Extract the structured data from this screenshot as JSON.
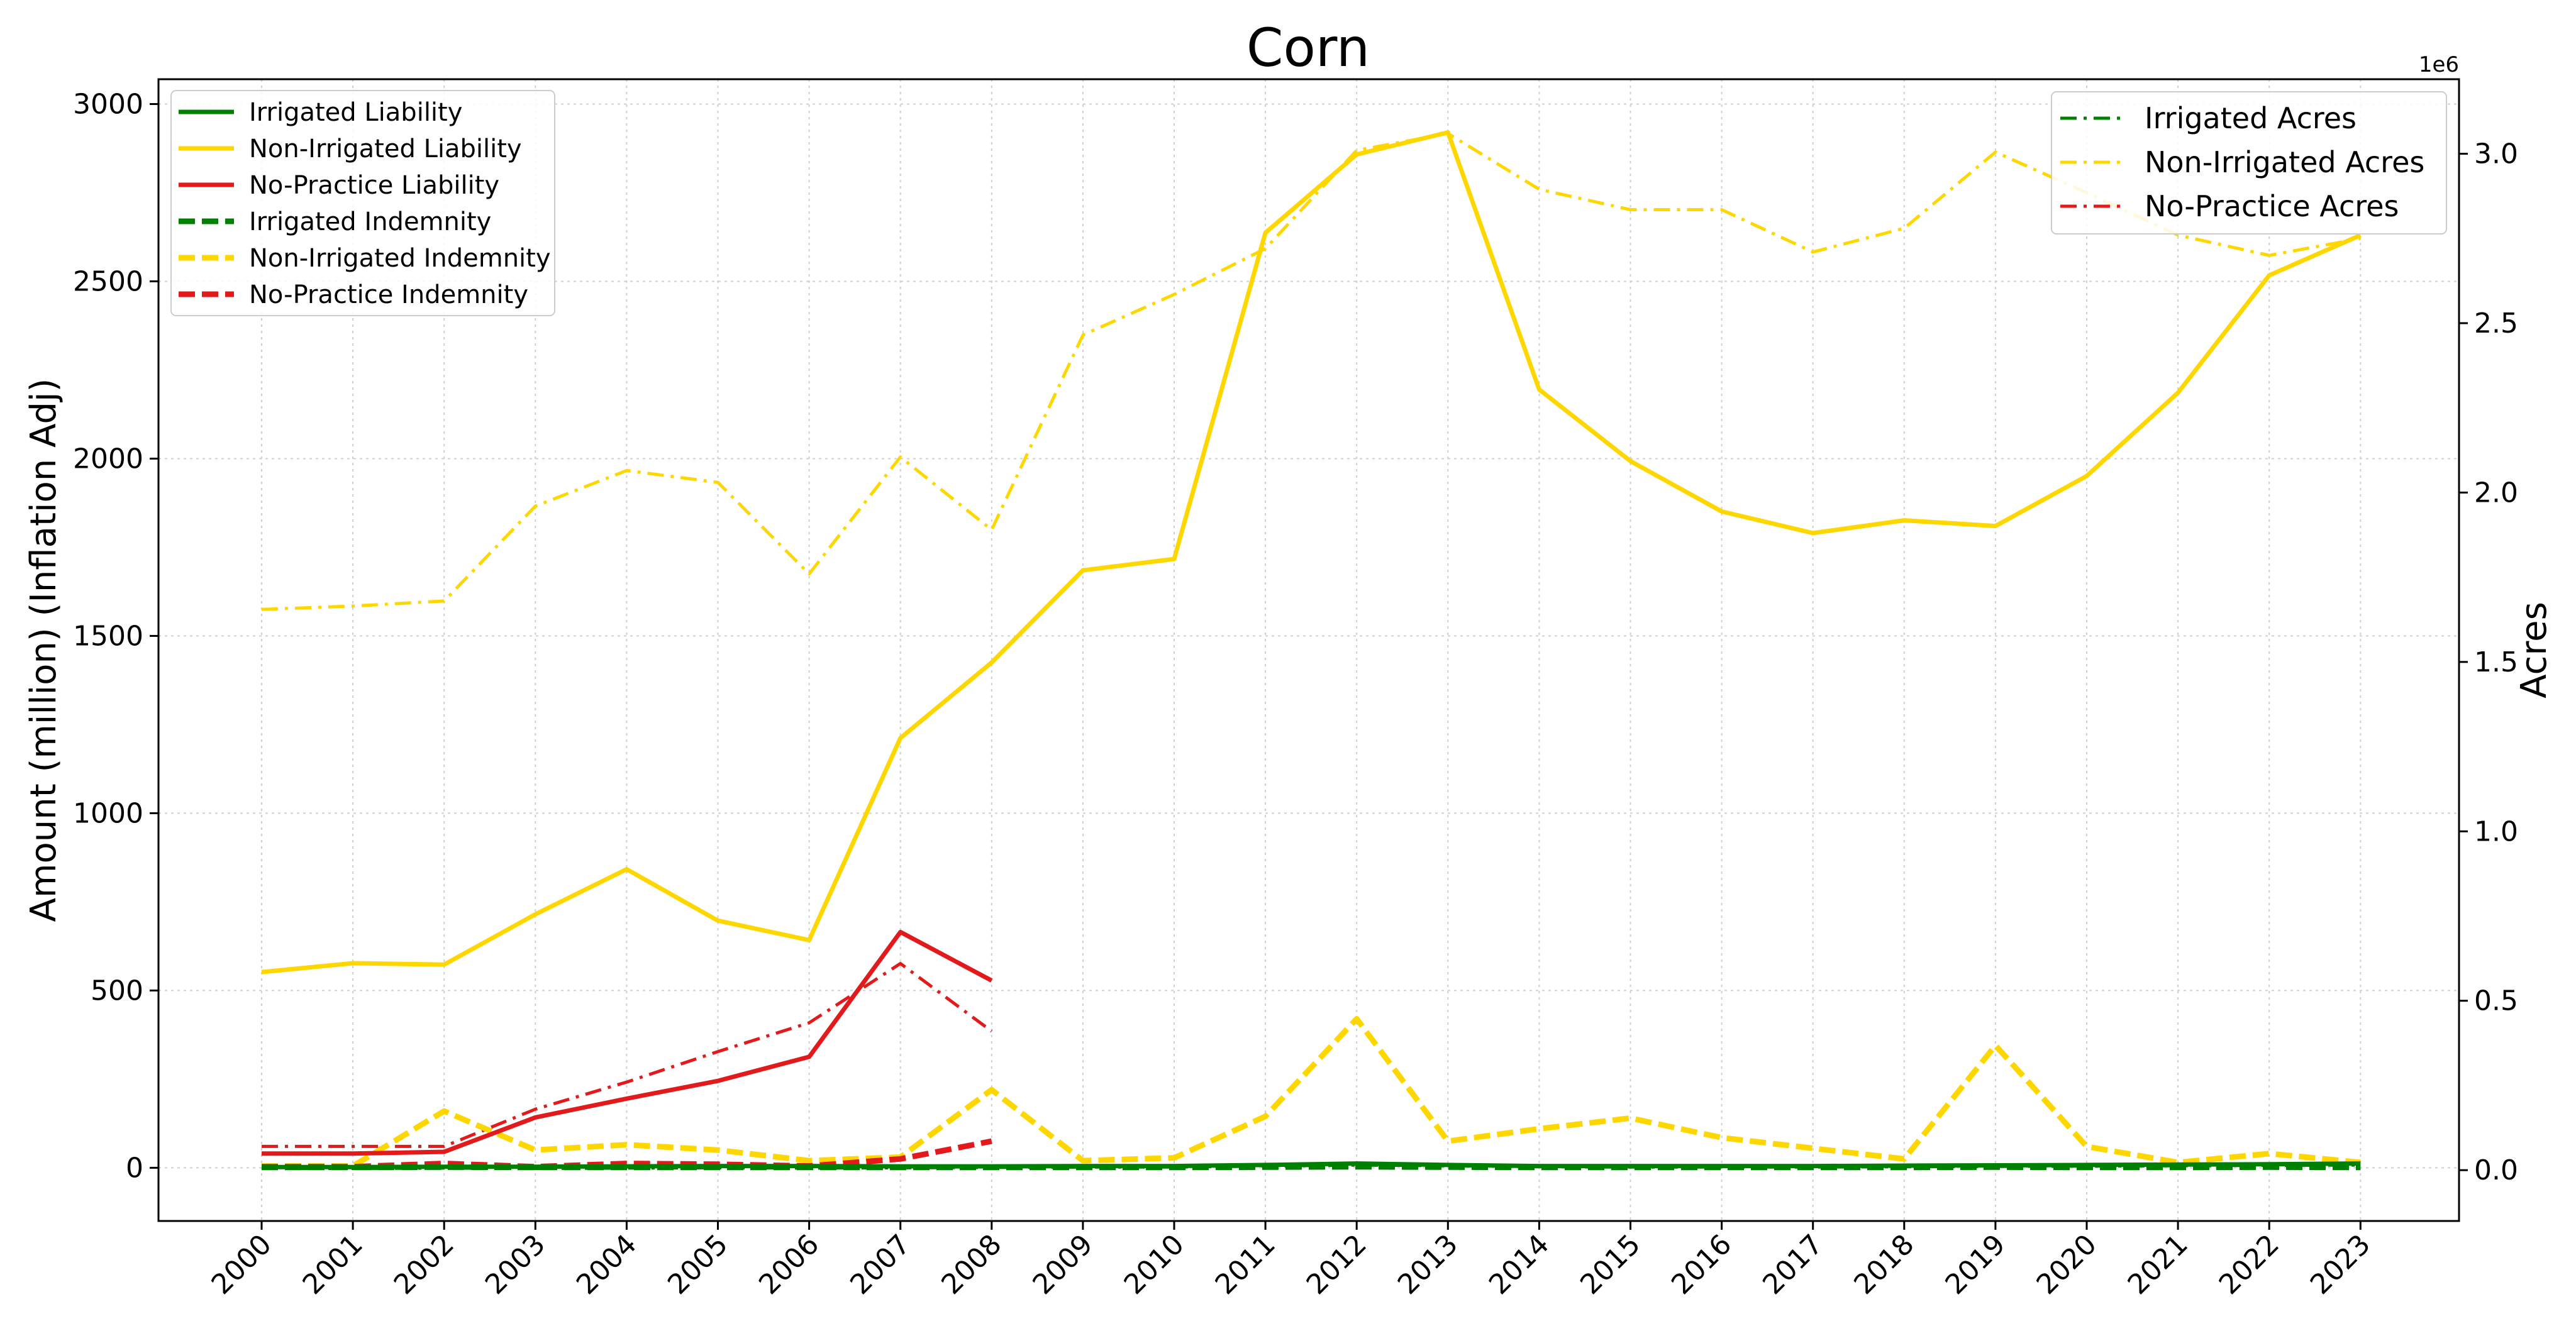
{
  "chart_data": {
    "type": "line",
    "title": "Corn",
    "xlabel": "",
    "ylabel": "Amount (million) (Inflation Adj)",
    "y2label": "Acres",
    "y2_offset_label": "1e6",
    "x": [
      "2000",
      "2001",
      "2002",
      "2003",
      "2004",
      "2005",
      "2006",
      "2007",
      "2008",
      "2009",
      "2010",
      "2011",
      "2012",
      "2013",
      "2014",
      "2015",
      "2016",
      "2017",
      "2018",
      "2019",
      "2020",
      "2021",
      "2022",
      "2023"
    ],
    "ylim": [
      -150,
      3070
    ],
    "yticks": [
      0,
      500,
      1000,
      1500,
      2000,
      2500,
      3000
    ],
    "ytick_labels": [
      "0",
      "500",
      "1000",
      "1500",
      "2000",
      "2500",
      "3000"
    ],
    "y2lim": [
      -150000,
      3220000
    ],
    "y2ticks": [
      0,
      500000,
      1000000,
      1500000,
      2000000,
      2500000,
      3000000
    ],
    "y2tick_labels": [
      "0.0",
      "0.5",
      "1.0",
      "1.5",
      "2.0",
      "2.5",
      "3.0"
    ],
    "grid": true,
    "legend_left_placement": "upper-left",
    "legend_right_placement": "upper-right",
    "colors": {
      "irrigated": "#008000",
      "non_irrigated": "#FFD700",
      "no_practice": "#E31A1C"
    },
    "series": [
      {
        "name": "Irrigated Liability",
        "axis": "left",
        "color": "#008000",
        "style": "solid",
        "values": [
          2,
          2,
          3,
          3,
          4,
          5,
          5,
          4,
          4,
          5,
          5,
          8,
          12,
          8,
          5,
          5,
          5,
          5,
          6,
          7,
          8,
          9,
          10,
          12
        ]
      },
      {
        "name": "Non-Irrigated Liability",
        "axis": "left",
        "color": "#FFD700",
        "style": "solid",
        "values": [
          552,
          577,
          573,
          715,
          842,
          697,
          642,
          1212,
          1425,
          1685,
          1717,
          2637,
          2858,
          2920,
          2195,
          1993,
          1851,
          1790,
          1826,
          1810,
          1951,
          2186,
          2517,
          2630
        ]
      },
      {
        "name": "No-Practice Liability",
        "axis": "left",
        "color": "#E31A1C",
        "style": "solid",
        "values": [
          40,
          40,
          45,
          142,
          195,
          245,
          313,
          665,
          528,
          null,
          null,
          null,
          null,
          null,
          null,
          null,
          null,
          null,
          null,
          null,
          null,
          null,
          null,
          null
        ]
      },
      {
        "name": "Irrigated Indemnity",
        "axis": "left",
        "color": "#008000",
        "style": "dashed",
        "values": [
          1,
          1,
          2,
          1,
          1,
          1,
          1,
          1,
          1,
          1,
          1,
          2,
          3,
          2,
          1,
          1,
          1,
          1,
          1,
          2,
          1,
          1,
          2,
          1
        ]
      },
      {
        "name": "Non-Irrigated Indemnity",
        "axis": "left",
        "color": "#FFD700",
        "style": "dashed",
        "values": [
          5,
          5,
          160,
          50,
          65,
          50,
          20,
          30,
          220,
          20,
          28,
          145,
          420,
          75,
          110,
          140,
          85,
          55,
          25,
          345,
          60,
          15,
          40,
          15
        ]
      },
      {
        "name": "No-Practice Indemnity",
        "axis": "left",
        "color": "#E31A1C",
        "style": "dashed",
        "values": [
          3,
          3,
          12,
          3,
          12,
          10,
          5,
          25,
          75,
          null,
          null,
          null,
          null,
          null,
          null,
          null,
          null,
          null,
          null,
          null,
          null,
          null,
          null,
          null
        ]
      },
      {
        "name": "Irrigated Acres",
        "axis": "right",
        "color": "#008000",
        "style": "dashdot",
        "values": [
          5000,
          5000,
          6000,
          5000,
          6000,
          7000,
          6000,
          7000,
          8000,
          9000,
          9000,
          12000,
          15000,
          13000,
          10000,
          9000,
          9000,
          9000,
          10000,
          11000,
          12000,
          13000,
          14000,
          15000
        ]
      },
      {
        "name": "Non-Irrigated Acres",
        "axis": "right",
        "color": "#FFD700",
        "style": "dashdot",
        "values": [
          1655000,
          1665000,
          1680000,
          1960000,
          2065000,
          2030000,
          1760000,
          2105000,
          1890000,
          2465000,
          2585000,
          2720000,
          3010000,
          3060000,
          2895000,
          2835000,
          2835000,
          2710000,
          2780000,
          3005000,
          2885000,
          2760000,
          2700000,
          2750000
        ]
      },
      {
        "name": "No-Practice Acres",
        "axis": "right",
        "color": "#E31A1C",
        "style": "dashdot",
        "values": [
          70000,
          70000,
          70000,
          180000,
          260000,
          350000,
          435000,
          610000,
          410000,
          null,
          null,
          null,
          null,
          null,
          null,
          null,
          null,
          null,
          null,
          null,
          null,
          null,
          null,
          null
        ]
      }
    ]
  }
}
